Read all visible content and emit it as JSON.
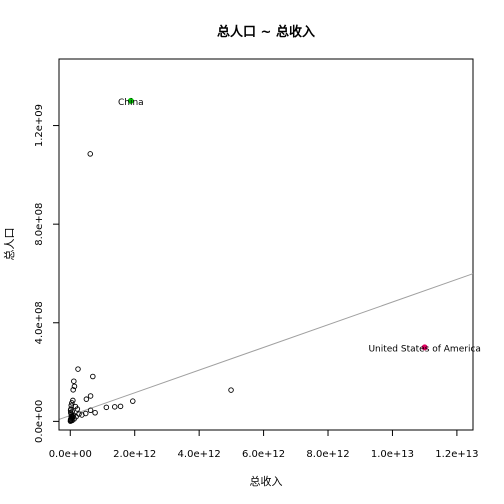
{
  "chart_data": {
    "type": "scatter",
    "title": "总人口 ~ 总收入",
    "xlabel": "总收入",
    "ylabel": "总人口",
    "xlim": [
      -350000000000.0,
      12500000000000.0
    ],
    "ylim": [
      -35000000.0,
      1470000000.0
    ],
    "xticks": [
      0,
      2000000000000.0,
      4000000000000.0,
      6000000000000.0,
      8000000000000.0,
      10000000000000.0,
      12000000000000.0
    ],
    "xtick_labels": [
      "0.0e+00",
      "2.0e+12",
      "4.0e+12",
      "6.0e+12",
      "8.0e+12",
      "1.0e+13",
      "1.2e+13"
    ],
    "yticks": [
      0,
      400000000.0,
      800000000.0,
      1200000000.0
    ],
    "ytick_labels": [
      "0.0e+00",
      "4.0e+08",
      "8.0e+08",
      "1.2e+09"
    ],
    "grid": false,
    "regression_line": {
      "intercept": 24000000.0,
      "slope": 4.6e-05,
      "color": "#a0a0a0"
    },
    "points": [
      [
        620000000000.0,
        1085000000.0
      ],
      [
        240000000000.0,
        212000000.0
      ],
      [
        700000000000.0,
        182000000.0
      ],
      [
        110000000000.0,
        163000000.0
      ],
      [
        130000000000.0,
        142000000.0
      ],
      [
        90000000000.0,
        128000000.0
      ],
      [
        630000000000.0,
        103000000.0
      ],
      [
        500000000000.0,
        90000000.0
      ],
      [
        4990000000000.0,
        127000000.0
      ],
      [
        1940000000000.0,
        82000000.0
      ],
      [
        1560000000000.0,
        61000000.0
      ],
      [
        1380000000000.0,
        59000000.0
      ],
      [
        1120000000000.0,
        57000000.0
      ],
      [
        630000000000.0,
        45000000.0
      ],
      [
        770000000000.0,
        35000000.0
      ],
      [
        480000000000.0,
        32000000.0
      ],
      [
        360000000000.0,
        26000000.0
      ],
      [
        270000000000.0,
        30000000.0
      ],
      [
        180000000000.0,
        19000000.0
      ],
      [
        220000000000.0,
        50000000.0
      ],
      [
        160000000000.0,
        60000000.0
      ],
      [
        50000000000.0,
        75000000.0
      ],
      [
        80000000000.0,
        85000000.0
      ],
      [
        30000000000.0,
        65000000.0
      ],
      [
        120000000000.0,
        10000000.0
      ],
      [
        60000000000.0,
        40000000.0
      ],
      [
        20000000000.0,
        50000000.0
      ],
      [
        100000000000.0,
        25000000.0
      ],
      [
        40000000000.0,
        15000000.0
      ],
      [
        10000000000.0,
        8000000.0
      ],
      [
        20000000000.0,
        3000000.0
      ],
      [
        30000000000.0,
        20000000.0
      ],
      [
        15000000000.0,
        35000000.0
      ],
      [
        50000000000.0,
        12000000.0
      ],
      [
        5000000000.0,
        1000000.0
      ],
      [
        25000000000.0,
        6000000.0
      ],
      [
        60000000000.0,
        4000000.0
      ],
      [
        80000000000.0,
        18000000.0
      ],
      [
        35000000000.0,
        28000000.0
      ],
      [
        10000000000.0,
        45000000.0
      ]
    ],
    "highlights": [
      {
        "x": 1880000000000.0,
        "y": 1300000000.0,
        "color": "#00c000",
        "label": "China",
        "label_color": "#e5a000"
      },
      {
        "x": 11000000000000.0,
        "y": 300000000.0,
        "color": "#e00060",
        "label": "United States of America",
        "label_color": "#0000cc"
      }
    ]
  }
}
